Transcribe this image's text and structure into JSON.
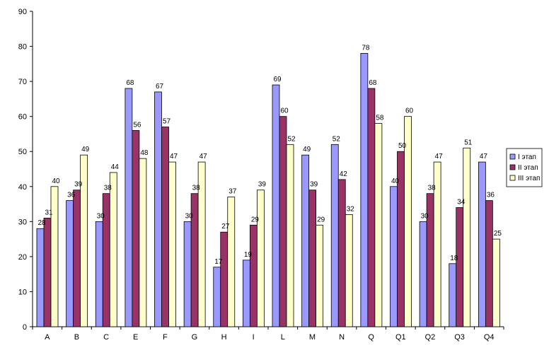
{
  "chart_data": {
    "type": "bar",
    "categories": [
      "A",
      "B",
      "C",
      "E",
      "F",
      "G",
      "H",
      "I",
      "L",
      "M",
      "N",
      "Q",
      "Q1",
      "Q2",
      "Q3",
      "Q4"
    ],
    "series": [
      {
        "name": "I этап",
        "color": "#9999ff",
        "values": [
          28,
          36,
          30,
          68,
          67,
          30,
          17,
          19,
          69,
          49,
          52,
          78,
          40,
          30,
          18,
          47
        ]
      },
      {
        "name": "II этап",
        "color": "#993366",
        "values": [
          31,
          39,
          38,
          56,
          57,
          38,
          27,
          29,
          60,
          39,
          42,
          68,
          50,
          38,
          34,
          36
        ]
      },
      {
        "name": "III этап",
        "color": "#ffffcc",
        "values": [
          40,
          49,
          44,
          48,
          47,
          47,
          37,
          39,
          52,
          29,
          32,
          58,
          60,
          47,
          51,
          25
        ]
      }
    ],
    "ylim": [
      0,
      90
    ],
    "yticks": [
      0,
      10,
      20,
      30,
      40,
      50,
      60,
      70,
      80,
      90
    ],
    "grid": false,
    "legend": "right"
  }
}
